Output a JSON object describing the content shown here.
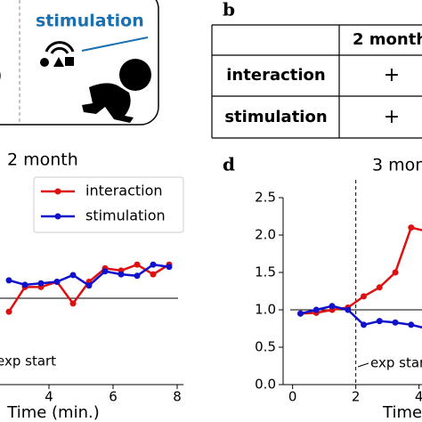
{
  "panel_a": {
    "label": "stimulation"
  },
  "panel_b": {
    "label": "b",
    "header": "2 month",
    "rows": [
      [
        "interaction",
        "+"
      ],
      [
        "stimulation",
        "+"
      ]
    ]
  },
  "chart_data": [
    {
      "type": "line",
      "title": "2 month",
      "xlabel": "Time (min.)",
      "annotation": "exp start",
      "hline": 1,
      "x": [
        2.75,
        3.25,
        3.75,
        4.25,
        4.75,
        5.25,
        5.75,
        6.25,
        6.75,
        7.25,
        7.75
      ],
      "series": [
        {
          "name": "interaction",
          "color": "#dd1111",
          "values": [
            0.82,
            1.15,
            1.15,
            1.22,
            0.93,
            1.22,
            1.4,
            1.37,
            1.45,
            1.32,
            1.45
          ]
        },
        {
          "name": "stimulation",
          "color": "#1111cc",
          "values": [
            1.24,
            1.18,
            1.2,
            1.22,
            1.31,
            1.17,
            1.36,
            1.32,
            1.3,
            1.45,
            1.42
          ]
        }
      ],
      "xlim": [
        2.5,
        8.2
      ],
      "ylim": [
        0,
        2.5
      ],
      "xticks": [
        4,
        6,
        8
      ],
      "legend": "upper right"
    },
    {
      "type": "line",
      "label": "d",
      "title": "3 month",
      "xlabel": "Time",
      "annotation": "exp start",
      "hline": 1,
      "exp_start": 2,
      "x": [
        0.25,
        0.75,
        1.25,
        1.75,
        2.25,
        2.75,
        3.25,
        3.75,
        4.25
      ],
      "series": [
        {
          "name": "interaction",
          "color": "#dd1111",
          "values": [
            0.95,
            0.96,
            1.0,
            1.03,
            1.18,
            1.3,
            1.5,
            2.1,
            2.05
          ]
        },
        {
          "name": "stimulation",
          "color": "#1111cc",
          "values": [
            0.95,
            1.0,
            1.05,
            1.0,
            0.8,
            0.85,
            0.83,
            0.8,
            0.75
          ]
        }
      ],
      "xlim": [
        -0.3,
        4.5
      ],
      "ylim": [
        0,
        2.5
      ],
      "xticks": [
        0,
        2,
        4
      ],
      "yticks": [
        {
          "value": 0,
          "label": "0.0"
        },
        {
          "value": 0.5,
          "label": "0.5"
        },
        {
          "value": 1,
          "label": "1.0"
        },
        {
          "value": 1.5,
          "label": "1.5"
        },
        {
          "value": 2,
          "label": "2.0"
        },
        {
          "value": 2.5,
          "label": "2.5"
        }
      ]
    }
  ]
}
